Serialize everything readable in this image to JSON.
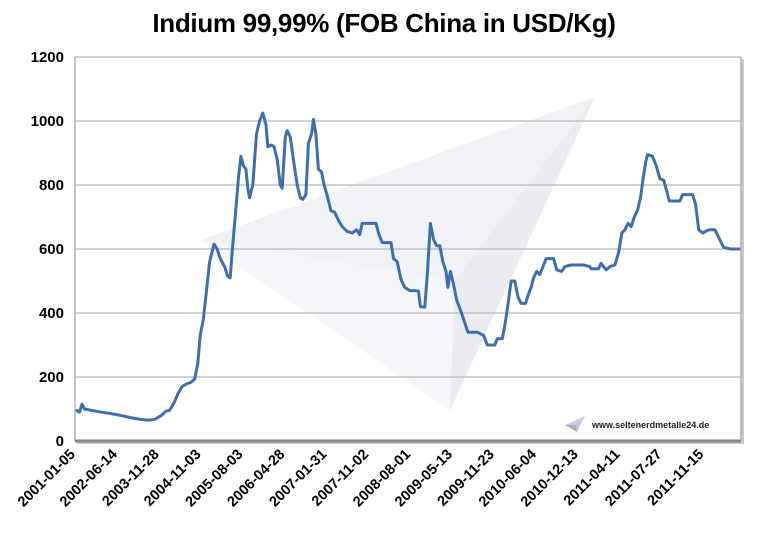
{
  "chart_data": {
    "type": "line",
    "title": "Indium 99,99% (FOB China in USD/Kg)",
    "xlabel": "",
    "ylabel": "",
    "ylim": [
      0,
      1200
    ],
    "yticks": [
      0,
      200,
      400,
      600,
      800,
      1000,
      1200
    ],
    "grid": true,
    "legend": null,
    "x_tick_labels": [
      "2001-01-05",
      "2002-06-14",
      "2003-11-28",
      "2004-11-03",
      "2005-08-03",
      "2006-04-28",
      "2007-01-31",
      "2007-11-02",
      "2008-08-01",
      "2009-05-13",
      "2009-11-23",
      "2010-06-04",
      "2010-12-13",
      "2011-04-11",
      "2011-07-27",
      "2011-11-15"
    ],
    "series": [
      {
        "name": "Indium 99,99% (USD/Kg)",
        "color": "#3d6fb0",
        "points": [
          [
            0.0,
            95
          ],
          [
            0.004,
            90
          ],
          [
            0.008,
            115
          ],
          [
            0.012,
            100
          ],
          [
            0.03,
            93
          ],
          [
            0.05,
            87
          ],
          [
            0.07,
            80
          ],
          [
            0.085,
            73
          ],
          [
            0.1,
            68
          ],
          [
            0.115,
            65
          ],
          [
            0.125,
            68
          ],
          [
            0.135,
            80
          ],
          [
            0.142,
            93
          ],
          [
            0.148,
            96
          ],
          [
            0.155,
            118
          ],
          [
            0.162,
            150
          ],
          [
            0.168,
            170
          ],
          [
            0.175,
            178
          ],
          [
            0.182,
            183
          ],
          [
            0.188,
            193
          ],
          [
            0.193,
            240
          ],
          [
            0.197,
            330
          ],
          [
            0.202,
            380
          ],
          [
            0.207,
            470
          ],
          [
            0.212,
            560
          ],
          [
            0.219,
            615
          ],
          [
            0.224,
            600
          ],
          [
            0.229,
            570
          ],
          [
            0.236,
            545
          ],
          [
            0.241,
            515
          ],
          [
            0.245,
            510
          ],
          [
            0.248,
            590
          ],
          [
            0.253,
            700
          ],
          [
            0.258,
            820
          ],
          [
            0.262,
            890
          ],
          [
            0.266,
            860
          ],
          [
            0.27,
            850
          ],
          [
            0.273,
            790
          ],
          [
            0.276,
            760
          ],
          [
            0.281,
            800
          ],
          [
            0.287,
            960
          ],
          [
            0.292,
            1000
          ],
          [
            0.297,
            1025
          ],
          [
            0.302,
            990
          ],
          [
            0.305,
            920
          ],
          [
            0.311,
            925
          ],
          [
            0.315,
            920
          ],
          [
            0.32,
            880
          ],
          [
            0.325,
            800
          ],
          [
            0.328,
            790
          ],
          [
            0.333,
            950
          ],
          [
            0.336,
            970
          ],
          [
            0.341,
            950
          ],
          [
            0.346,
            880
          ],
          [
            0.352,
            800
          ],
          [
            0.357,
            760
          ],
          [
            0.361,
            755
          ],
          [
            0.366,
            770
          ],
          [
            0.37,
            930
          ],
          [
            0.375,
            960
          ],
          [
            0.378,
            1005
          ],
          [
            0.382,
            960
          ],
          [
            0.386,
            850
          ],
          [
            0.391,
            840
          ],
          [
            0.395,
            800
          ],
          [
            0.401,
            760
          ],
          [
            0.406,
            720
          ],
          [
            0.412,
            715
          ],
          [
            0.418,
            690
          ],
          [
            0.424,
            670
          ],
          [
            0.432,
            655
          ],
          [
            0.44,
            650
          ],
          [
            0.447,
            660
          ],
          [
            0.452,
            645
          ],
          [
            0.456,
            680
          ],
          [
            0.47,
            680
          ],
          [
            0.478,
            680
          ],
          [
            0.482,
            650
          ],
          [
            0.488,
            620
          ],
          [
            0.497,
            620
          ],
          [
            0.502,
            620
          ],
          [
            0.506,
            570
          ],
          [
            0.512,
            560
          ],
          [
            0.518,
            505
          ],
          [
            0.524,
            480
          ],
          [
            0.532,
            470
          ],
          [
            0.54,
            470
          ],
          [
            0.546,
            468
          ],
          [
            0.549,
            420
          ],
          [
            0.556,
            418
          ],
          [
            0.56,
            520
          ],
          [
            0.565,
            680
          ],
          [
            0.57,
            630
          ],
          [
            0.575,
            610
          ],
          [
            0.58,
            610
          ],
          [
            0.585,
            560
          ],
          [
            0.59,
            530
          ],
          [
            0.593,
            480
          ],
          [
            0.597,
            530
          ],
          [
            0.602,
            490
          ],
          [
            0.607,
            440
          ],
          [
            0.613,
            410
          ],
          [
            0.619,
            375
          ],
          [
            0.625,
            340
          ],
          [
            0.64,
            340
          ],
          [
            0.65,
            330
          ],
          [
            0.656,
            300
          ],
          [
            0.668,
            300
          ],
          [
            0.672,
            320
          ],
          [
            0.68,
            320
          ],
          [
            0.684,
            360
          ],
          [
            0.69,
            440
          ],
          [
            0.694,
            500
          ],
          [
            0.7,
            500
          ],
          [
            0.705,
            450
          ],
          [
            0.71,
            430
          ],
          [
            0.717,
            430
          ],
          [
            0.722,
            460
          ],
          [
            0.726,
            480
          ],
          [
            0.73,
            510
          ],
          [
            0.735,
            530
          ],
          [
            0.74,
            520
          ],
          [
            0.746,
            550
          ],
          [
            0.75,
            570
          ],
          [
            0.762,
            570
          ],
          [
            0.767,
            535
          ],
          [
            0.775,
            530
          ],
          [
            0.78,
            545
          ],
          [
            0.79,
            550
          ],
          [
            0.81,
            550
          ],
          [
            0.82,
            545
          ],
          [
            0.822,
            538
          ],
          [
            0.834,
            538
          ],
          [
            0.838,
            555
          ],
          [
            0.842,
            545
          ],
          [
            0.846,
            535
          ],
          [
            0.852,
            545
          ],
          [
            0.86,
            550
          ],
          [
            0.866,
            590
          ],
          [
            0.871,
            650
          ],
          [
            0.876,
            660
          ],
          [
            0.881,
            680
          ],
          [
            0.886,
            670
          ],
          [
            0.891,
            700
          ],
          [
            0.896,
            720
          ],
          [
            0.901,
            760
          ],
          [
            0.905,
            820
          ],
          [
            0.909,
            870
          ],
          [
            0.912,
            895
          ],
          [
            0.92,
            890
          ],
          [
            0.926,
            860
          ],
          [
            0.932,
            820
          ],
          [
            0.938,
            815
          ],
          [
            0.943,
            780
          ],
          [
            0.947,
            750
          ],
          [
            0.964,
            750
          ],
          [
            0.968,
            770
          ],
          [
            0.984,
            770
          ],
          [
            0.989,
            740
          ],
          [
            0.994,
            660
          ],
          [
            1.0,
            650
          ],
          [
            1.01,
            660
          ],
          [
            1.02,
            660
          ],
          [
            1.025,
            640
          ],
          [
            1.03,
            620
          ],
          [
            1.034,
            605
          ],
          [
            1.045,
            600
          ],
          [
            1.06,
            600
          ]
        ]
      }
    ]
  },
  "title": "Indium 99,99% (FOB China in USD/Kg)",
  "y_axis": {
    "ticks": [
      "0",
      "200",
      "400",
      "600",
      "800",
      "1000",
      "1200"
    ]
  },
  "x_axis": {
    "ticks": [
      "2001-01-05",
      "2002-06-14",
      "2003-11-28",
      "2004-11-03",
      "2005-08-03",
      "2006-04-28",
      "2007-01-31",
      "2007-11-02",
      "2008-08-01",
      "2009-05-13",
      "2009-11-23",
      "2010-06-04",
      "2010-12-13",
      "2011-04-11",
      "2011-07-27",
      "2011-11-15"
    ]
  },
  "watermark": {
    "text": "www.seltenerdmetalle24.de",
    "icon": "paper-plane-logo-icon"
  },
  "colors": {
    "line": "#3d6fb0",
    "grid": "#b8b8b8",
    "axis": "#9a9a9a",
    "watermark": "#e9ecf4"
  }
}
